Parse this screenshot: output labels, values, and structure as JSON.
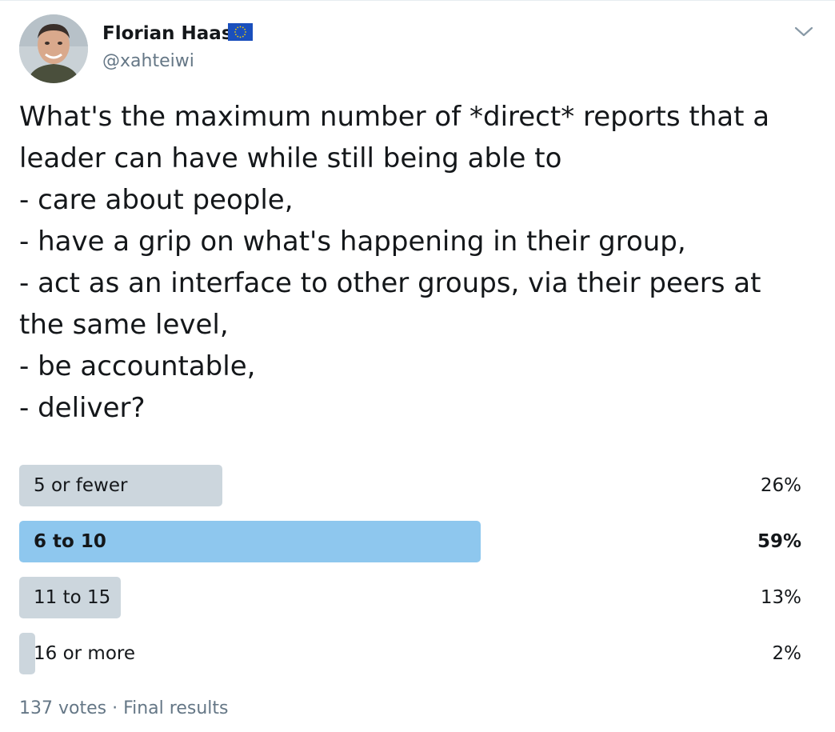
{
  "author": {
    "display_name": "Florian Haas",
    "handle": "@xahteiwi",
    "badge_icon": "eu-flag-icon"
  },
  "menu_icon": "chevron-down-icon",
  "tweet": {
    "text": "What's the maximum number of *direct* reports that a\nleader can have while still being able to\n- care about people,\n- have a grip on what's happening in their group,\n- act as an interface to other groups, via their peers at\nthe same level,\n- be accountable,\n- deliver?"
  },
  "poll": {
    "options": [
      {
        "label": "5 or fewer",
        "percent_text": "26%",
        "percent": 26,
        "winner": false
      },
      {
        "label": "6 to 10",
        "percent_text": "59%",
        "percent": 59,
        "winner": true
      },
      {
        "label": "11 to 15",
        "percent_text": "13%",
        "percent": 13,
        "winner": false
      },
      {
        "label": "16 or more",
        "percent_text": "2%",
        "percent": 2,
        "winner": false
      }
    ],
    "footer": "137 votes · Final results"
  },
  "colors": {
    "bar": "#ccd6dd",
    "bar_winner": "#8ec7ee",
    "text": "#14171a",
    "muted": "#657786"
  }
}
